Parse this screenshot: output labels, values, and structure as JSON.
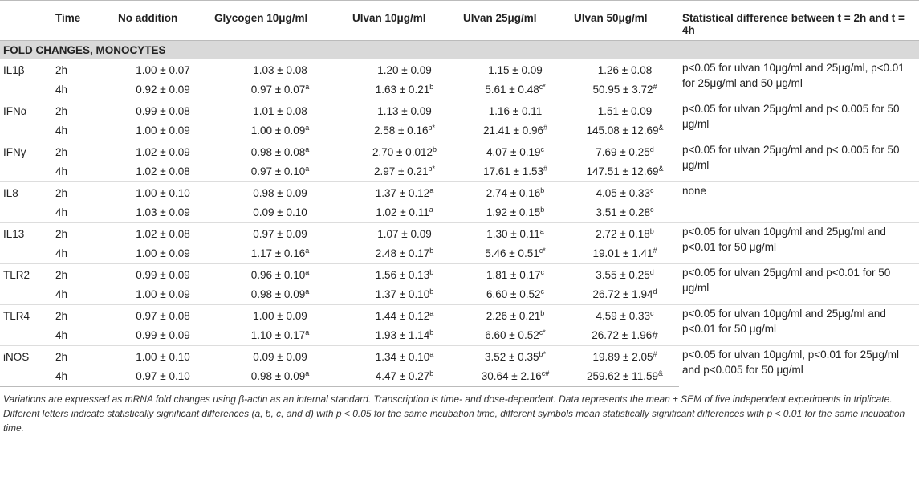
{
  "table": {
    "header": [
      "Time",
      "No addition",
      "Glycogen 10μg/ml",
      "Ulvan 10μg/ml",
      "Ulvan 25μg/ml",
      "Ulvan 50μg/ml",
      "Statistical difference between t = 2h and t = 4h"
    ],
    "section": "FOLD CHANGES, MONOCYTES",
    "groups": [
      {
        "gene": "IL1β",
        "note": "p<0.05 for ulvan 10μg/ml and 25μg/ml, p<0.01 for 25μg/ml and 50 μg/ml",
        "rows": [
          {
            "time": "2h",
            "cells": [
              "1.00 ± 0.07",
              "1.03 ± 0.08",
              "1.20 ± 0.09",
              "1.15 ± 0.09",
              "1.26 ± 0.08"
            ]
          },
          {
            "time": "4h",
            "cells": [
              "0.92 ± 0.09",
              {
                "text": "0.97 ± 0.07",
                "sup": "a"
              },
              {
                "text": "1.63 ± 0.21",
                "sup": "b"
              },
              {
                "text": "5.61 ± 0.48",
                "sup": "c*"
              },
              {
                "text": "50.95 ± 3.72",
                "sup": "#"
              }
            ]
          }
        ]
      },
      {
        "gene": "IFNα",
        "note": "p<0.05 for ulvan 25μg/ml and p< 0.005 for 50 μg/ml",
        "rows": [
          {
            "time": "2h",
            "cells": [
              "0.99 ± 0.08",
              "1.01 ± 0.08",
              "1.13 ± 0.09",
              "1.16 ± 0.11",
              "1.51 ± 0.09"
            ]
          },
          {
            "time": "4h",
            "cells": [
              "1.00 ± 0.09",
              {
                "text": "1.00 ± 0.09",
                "sup": "a"
              },
              {
                "text": "2.58 ± 0.16",
                "sup": "b*"
              },
              {
                "text": "21.41 ± 0.96",
                "sup": "#"
              },
              {
                "text": "145.08 ± 12.69",
                "sup": "&"
              }
            ]
          }
        ]
      },
      {
        "gene": "IFNγ",
        "note": "p<0.05 for ulvan 25μg/ml and p< 0.005 for 50 μg/ml",
        "rows": [
          {
            "time": "2h",
            "cells": [
              "1.02 ± 0.09",
              {
                "text": "0.98 ± 0.08",
                "sup": "a"
              },
              {
                "text": "2.70 ± 0.012",
                "sup": "b"
              },
              {
                "text": "4.07 ± 0.19",
                "sup": "c"
              },
              {
                "text": "7.69 ± 0.25",
                "sup": "d"
              }
            ]
          },
          {
            "time": "4h",
            "cells": [
              "1.02 ± 0.08",
              {
                "text": "0.97 ± 0.10",
                "sup": "a"
              },
              {
                "text": "2.97 ± 0.21",
                "sup": "b*"
              },
              {
                "text": "17.61 ± 1.53",
                "sup": "#"
              },
              {
                "text": "147.51 ± 12.69",
                "sup": "&"
              }
            ]
          }
        ]
      },
      {
        "gene": "IL8",
        "note": "none",
        "rows": [
          {
            "time": "2h",
            "cells": [
              "1.00 ± 0.10",
              "0.98 ± 0.09",
              {
                "text": "1.37 ± 0.12",
                "sup": "a"
              },
              {
                "text": "2.74 ± 0.16",
                "sup": "b"
              },
              {
                "text": "4.05 ± 0.33",
                "sup": "c"
              }
            ]
          },
          {
            "time": "4h",
            "cells": [
              "1.03 ± 0.09",
              "0.09 ± 0.10",
              {
                "text": "1.02 ± 0.11",
                "sup": "a"
              },
              {
                "text": "1.92 ± 0.15",
                "sup": "b"
              },
              {
                "text": "3.51 ± 0.28",
                "sup": "c"
              }
            ]
          }
        ]
      },
      {
        "gene": "IL13",
        "note": "p<0.05 for ulvan 10μg/ml and 25μg/ml and p<0.01 for 50 μg/ml",
        "rows": [
          {
            "time": "2h",
            "cells": [
              "1.02 ± 0.08",
              "0.97 ± 0.09",
              "1.07 ± 0.09",
              {
                "text": "1.30 ± 0.11",
                "sup": "a"
              },
              {
                "text": "2.72 ± 0.18",
                "sup": "b"
              }
            ]
          },
          {
            "time": "4h",
            "cells": [
              "1.00 ± 0.09",
              {
                "text": "1.17 ± 0.16",
                "sup": "a"
              },
              {
                "text": "2.48 ± 0.17",
                "sup": "b"
              },
              {
                "text": "5.46 ± 0.51",
                "sup": "c*"
              },
              {
                "text": "19.01 ± 1.41",
                "sup": "#"
              }
            ]
          }
        ]
      },
      {
        "gene": "TLR2",
        "note": "p<0.05 for ulvan 25μg/ml and p<0.01 for 50 μg/ml",
        "rows": [
          {
            "time": "2h",
            "cells": [
              "0.99 ± 0.09",
              {
                "text": "0.96 ± 0.10",
                "sup": "a"
              },
              {
                "text": "1.56 ± 0.13",
                "sup": "b"
              },
              {
                "text": "1.81 ± 0.17",
                "sup": "c"
              },
              {
                "text": "3.55 ± 0.25",
                "sup": "d"
              }
            ]
          },
          {
            "time": "4h",
            "cells": [
              "1.00 ± 0.09",
              {
                "text": "0.98 ± 0.09",
                "sup": "a"
              },
              {
                "text": "1.37 ± 0.10",
                "sup": "b"
              },
              {
                "text": "6.60 ± 0.52",
                "sup": "c"
              },
              {
                "text": "26.72 ± 1.94",
                "sup": "d"
              }
            ]
          }
        ]
      },
      {
        "gene": "TLR4",
        "note": "p<0.05 for ulvan 10μg/ml and 25μg/ml and p<0.01 for 50 μg/ml",
        "rows": [
          {
            "time": "2h",
            "cells": [
              "0.97 ± 0.08",
              "1.00 ± 0.09",
              {
                "text": "1.44 ± 0.12",
                "sup": "a"
              },
              {
                "text": "2.26 ± 0.21",
                "sup": "b"
              },
              {
                "text": "4.59 ± 0.33",
                "sup": "c"
              }
            ]
          },
          {
            "time": "4h",
            "cells": [
              "0.99 ± 0.09",
              {
                "text": "1.10 ± 0.17",
                "sup": "a"
              },
              {
                "text": "1.93 ± 1.14",
                "sup": "b"
              },
              {
                "text": "6.60 ± 0.52",
                "sup": "c*"
              },
              "26.72 ± 1.96#"
            ]
          }
        ]
      },
      {
        "gene": "iNOS",
        "note": "p<0.05 for ulvan 10μg/ml, p<0.01 for 25μg/ml and p<0.005 for 50 μg/ml",
        "rows": [
          {
            "time": "2h",
            "cells": [
              "1.00 ± 0.10",
              "0.09 ± 0.09",
              {
                "text": "1.34 ± 0.10",
                "sup": "a"
              },
              {
                "text": "3.52 ± 0.35",
                "sup": "b*"
              },
              {
                "text": "19.89 ± 2.05",
                "sup": "#"
              }
            ]
          },
          {
            "time": "4h",
            "cells": [
              "0.97 ± 0.10",
              {
                "text": "0.98 ± 0.09",
                "sup": "a"
              },
              {
                "text": "4.47 ± 0.27",
                "sup": "b"
              },
              {
                "text": "30.64 ± 2.16",
                "sup": "c#"
              },
              {
                "text": "259.62 ± 11.59",
                "sup": "&"
              }
            ]
          }
        ]
      }
    ]
  },
  "footnote": "Variations are expressed as mRNA fold changes using β-actin as an internal standard. Transcription is time- and dose-dependent. Data represents the mean ± SEM of five independent experiments in triplicate. Different letters indicate statistically significant differences (a, b, c, and d) with p < 0.05 for the same incubation time, different symbols mean statistically significant differences with p < 0.01 for the same incubation time."
}
